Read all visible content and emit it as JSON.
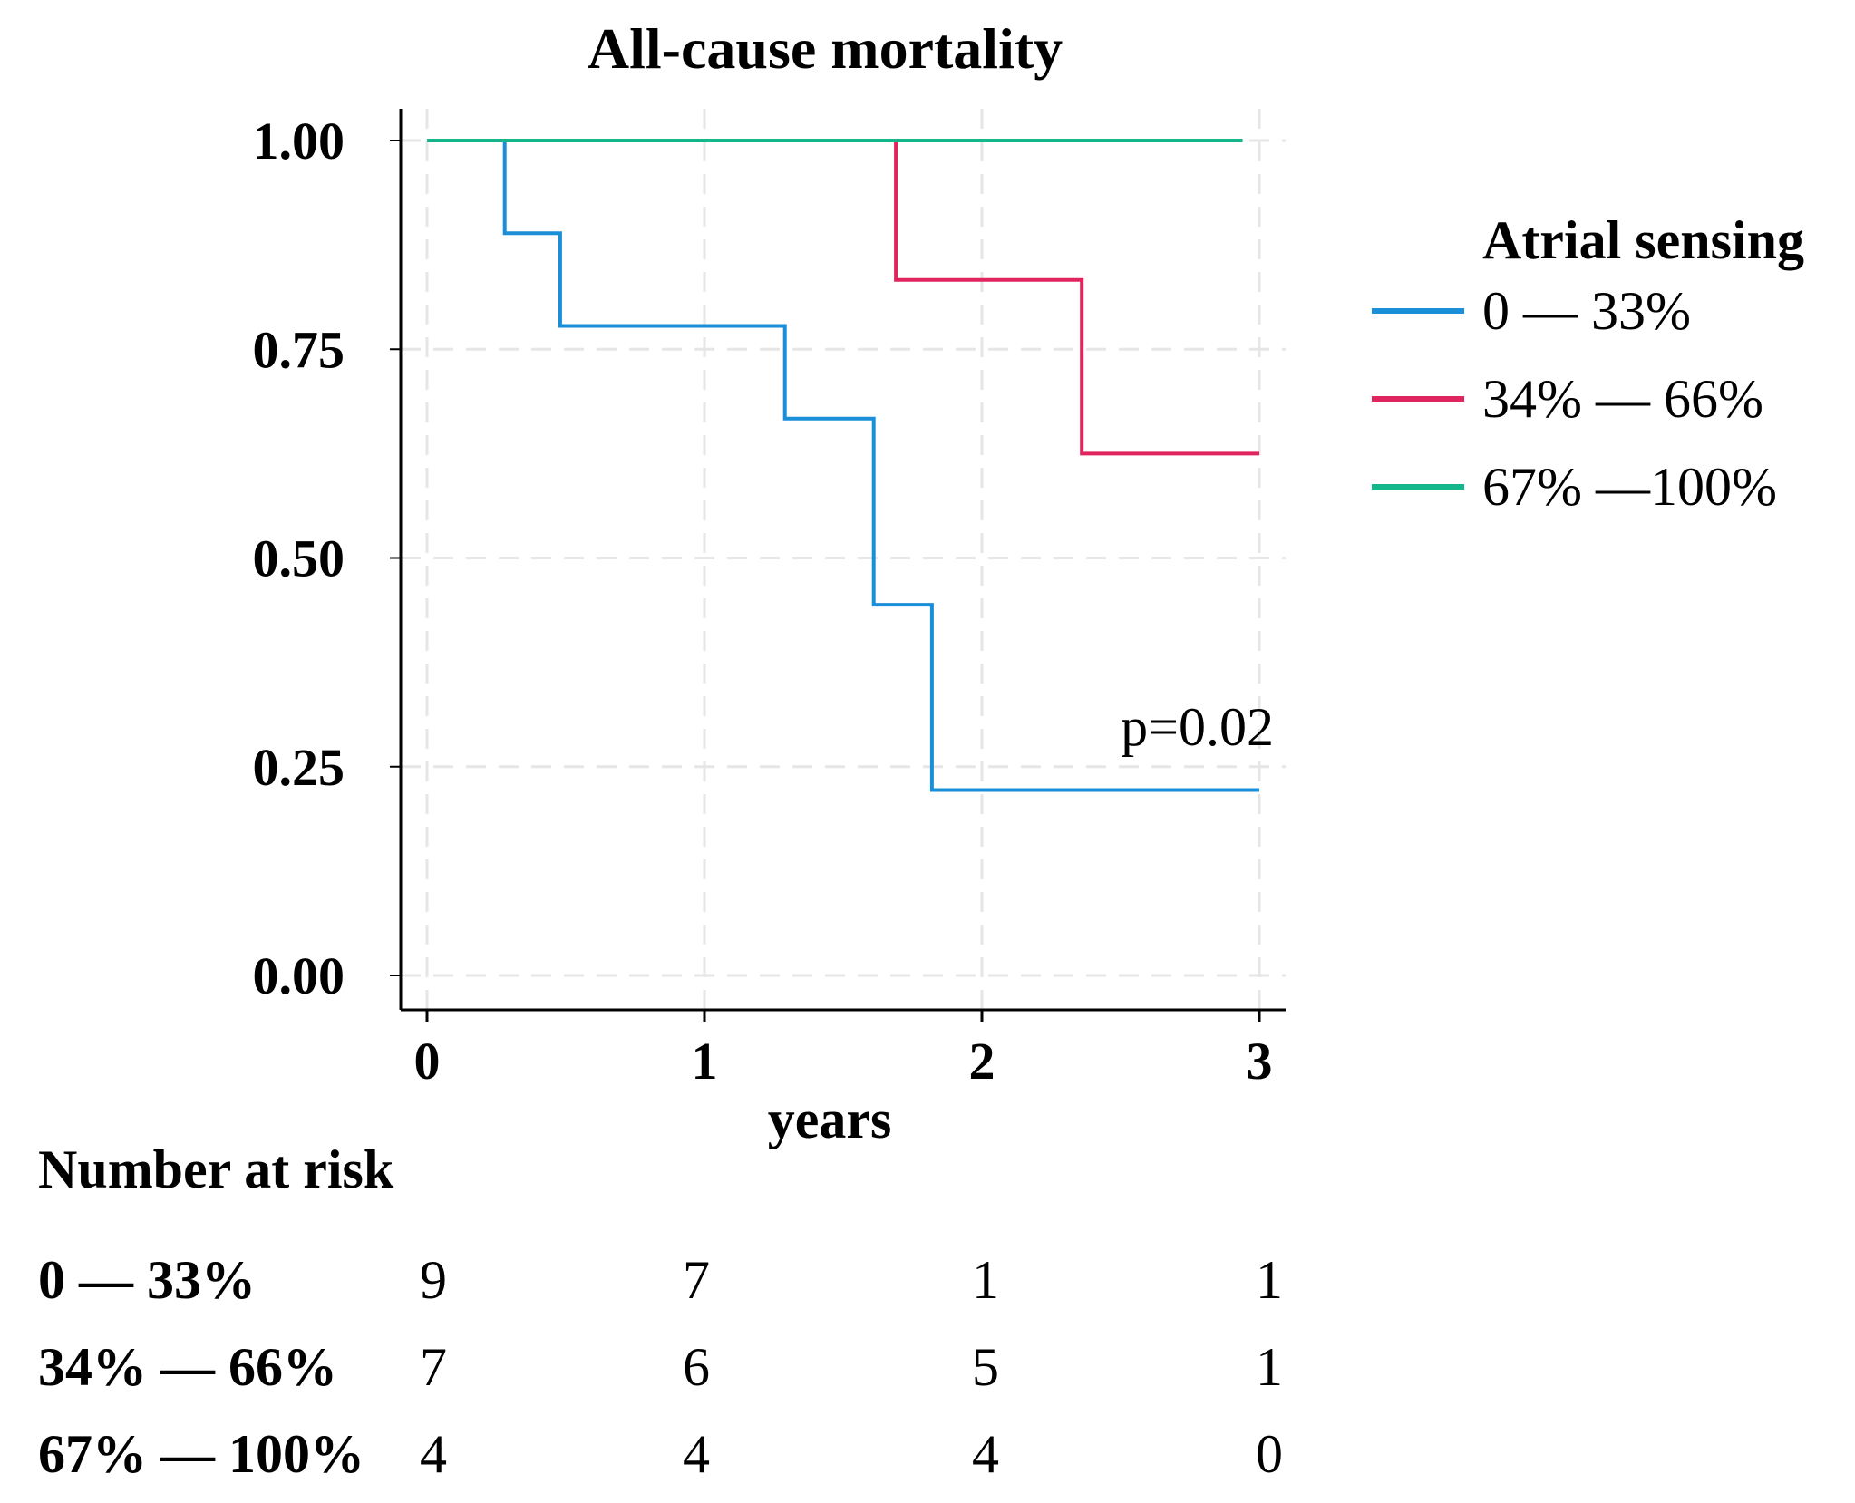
{
  "chart_data": {
    "type": "line",
    "subtype": "kaplan-meier step",
    "title": "All-cause mortality",
    "xlabel": "years",
    "ylabel": "",
    "xlim": [
      0,
      3
    ],
    "ylim": [
      0,
      1
    ],
    "x_ticks": [
      "0",
      "1",
      "2",
      "3"
    ],
    "y_ticks": [
      "0.00",
      "0.25",
      "0.50",
      "0.75",
      "1.00"
    ],
    "grid": true,
    "annotation": "p=0.02",
    "legend": {
      "title": "Atrial sensing",
      "position": "right"
    },
    "series": [
      {
        "name": "0 — 33%",
        "color": "#1a8fd8",
        "points": [
          [
            0,
            1.0
          ],
          [
            0.28,
            1.0
          ],
          [
            0.28,
            0.889
          ],
          [
            0.48,
            0.889
          ],
          [
            0.48,
            0.778
          ],
          [
            1.29,
            0.778
          ],
          [
            1.29,
            0.667
          ],
          [
            1.61,
            0.667
          ],
          [
            1.61,
            0.444
          ],
          [
            1.82,
            0.444
          ],
          [
            1.82,
            0.222
          ],
          [
            3.0,
            0.222
          ]
        ]
      },
      {
        "name": "34% — 66%",
        "color": "#e0245e",
        "points": [
          [
            0,
            1.0
          ],
          [
            1.69,
            1.0
          ],
          [
            1.69,
            0.833
          ],
          [
            2.36,
            0.833
          ],
          [
            2.36,
            0.625
          ],
          [
            3.0,
            0.625
          ]
        ]
      },
      {
        "name": "67% —100%",
        "color": "#14b78b",
        "points": [
          [
            0,
            1.0
          ],
          [
            2.94,
            1.0
          ]
        ]
      }
    ],
    "risk_table": {
      "title": "Number at risk",
      "rows": [
        {
          "label": "0 — 33%",
          "values": [
            "9",
            "7",
            "1",
            "1"
          ]
        },
        {
          "label": "34% — 66%",
          "values": [
            "7",
            "6",
            "5",
            "1"
          ]
        },
        {
          "label": "67% — 100%",
          "values": [
            "4",
            "4",
            "4",
            "0"
          ]
        }
      ]
    }
  }
}
